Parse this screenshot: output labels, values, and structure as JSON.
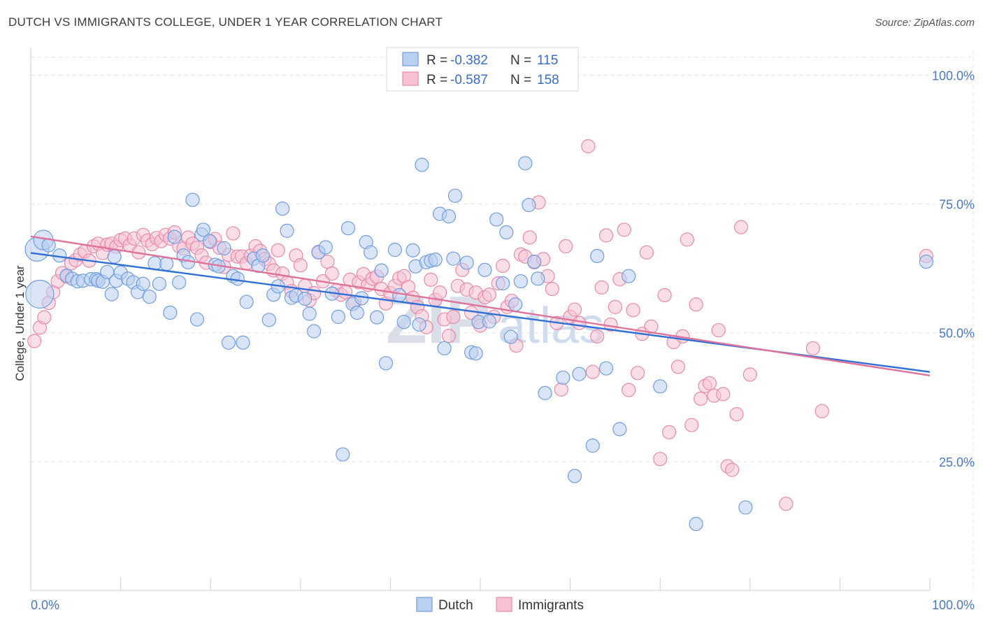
{
  "title": "DUTCH VS IMMIGRANTS COLLEGE, UNDER 1 YEAR CORRELATION CHART",
  "source": "Source: ZipAtlas.com",
  "chart_data": {
    "type": "scatter",
    "title": "DUTCH VS IMMIGRANTS COLLEGE, UNDER 1 YEAR CORRELATION CHART",
    "xlabel": "",
    "ylabel": "College, Under 1 year",
    "xlim": [
      0,
      100
    ],
    "ylim": [
      0,
      104
    ],
    "x_tick_labels": [
      {
        "value": 0,
        "label": "0.0%"
      },
      {
        "value": 100,
        "label": "100.0%"
      }
    ],
    "y_tick_labels": [
      {
        "value": 25,
        "label": "25.0%"
      },
      {
        "value": 50,
        "label": "50.0%"
      },
      {
        "value": 75,
        "label": "75.0%"
      },
      {
        "value": 100,
        "label": "100.0%"
      }
    ],
    "grid": true,
    "legend_placement": "top-center",
    "bottom_legend": [
      "Dutch",
      "Immigrants"
    ],
    "stats": [
      {
        "r_label": "R = ",
        "r": "-0.382",
        "n_label": "N = ",
        "n": "115"
      },
      {
        "r_label": "R = ",
        "r": "-0.587",
        "n_label": "N = ",
        "n": "158"
      }
    ],
    "series": [
      {
        "name": "Dutch",
        "color": "#6f9de0",
        "fill": "#b9d0f0",
        "trend": {
          "x": [
            0,
            100
          ],
          "y": [
            65.5,
            42.4
          ]
        },
        "points": [
          [
            0.7,
            66.2
          ],
          [
            1.4,
            68.0
          ],
          [
            1.0,
            57.5
          ],
          [
            2.0,
            67.0
          ],
          [
            3.2,
            65.0
          ],
          [
            4.0,
            61.1
          ],
          [
            4.6,
            60.5
          ],
          [
            5.2,
            60.0
          ],
          [
            5.8,
            60.1
          ],
          [
            6.7,
            60.4
          ],
          [
            7.3,
            60.4
          ],
          [
            7.5,
            60.1
          ],
          [
            8.0,
            59.9
          ],
          [
            8.5,
            61.8
          ],
          [
            9.0,
            57.5
          ],
          [
            9.3,
            64.8
          ],
          [
            9.5,
            60.1
          ],
          [
            10.0,
            61.7
          ],
          [
            10.8,
            60.5
          ],
          [
            11.4,
            59.8
          ],
          [
            11.9,
            57.9
          ],
          [
            12.5,
            59.5
          ],
          [
            13.2,
            57.0
          ],
          [
            13.8,
            63.5
          ],
          [
            14.3,
            59.5
          ],
          [
            15.1,
            63.4
          ],
          [
            15.5,
            53.9
          ],
          [
            16.0,
            68.6
          ],
          [
            16.5,
            59.8
          ],
          [
            17.0,
            65.0
          ],
          [
            17.5,
            63.7
          ],
          [
            18.0,
            75.8
          ],
          [
            18.5,
            52.6
          ],
          [
            19.0,
            69.1
          ],
          [
            19.2,
            70.0
          ],
          [
            19.9,
            67.8
          ],
          [
            20.5,
            63.2
          ],
          [
            20.9,
            62.9
          ],
          [
            21.5,
            66.4
          ],
          [
            22.0,
            48.1
          ],
          [
            22.5,
            61.0
          ],
          [
            23.0,
            60.5
          ],
          [
            23.6,
            48.1
          ],
          [
            24.0,
            56.0
          ],
          [
            24.8,
            64.4
          ],
          [
            25.3,
            63.0
          ],
          [
            25.8,
            65.0
          ],
          [
            26.5,
            52.5
          ],
          [
            27.0,
            57.4
          ],
          [
            27.5,
            59.0
          ],
          [
            28.0,
            74.1
          ],
          [
            28.5,
            69.8
          ],
          [
            29.0,
            56.8
          ],
          [
            29.5,
            57.2
          ],
          [
            30.5,
            56.6
          ],
          [
            31.0,
            53.7
          ],
          [
            31.5,
            50.3
          ],
          [
            32.0,
            65.6
          ],
          [
            32.8,
            66.6
          ],
          [
            33.5,
            57.6
          ],
          [
            34.2,
            53.1
          ],
          [
            34.7,
            26.4
          ],
          [
            35.3,
            70.3
          ],
          [
            35.8,
            55.6
          ],
          [
            36.3,
            53.9
          ],
          [
            36.8,
            56.7
          ],
          [
            37.3,
            67.6
          ],
          [
            37.8,
            65.6
          ],
          [
            38.5,
            53.0
          ],
          [
            39.0,
            62.1
          ],
          [
            39.5,
            44.1
          ],
          [
            40.5,
            66.1
          ],
          [
            41.0,
            57.3
          ],
          [
            41.5,
            52.1
          ],
          [
            42.5,
            66.0
          ],
          [
            42.8,
            62.9
          ],
          [
            43.2,
            51.6
          ],
          [
            43.5,
            82.6
          ],
          [
            44.0,
            63.7
          ],
          [
            44.5,
            64.0
          ],
          [
            45.0,
            64.2
          ],
          [
            45.5,
            73.1
          ],
          [
            46.0,
            47.0
          ],
          [
            46.5,
            72.6
          ],
          [
            47.0,
            64.4
          ],
          [
            47.2,
            76.6
          ],
          [
            48.5,
            63.6
          ],
          [
            49.0,
            46.2
          ],
          [
            49.5,
            46.0
          ],
          [
            49.8,
            52.1
          ],
          [
            50.5,
            62.2
          ],
          [
            51.0,
            52.2
          ],
          [
            51.8,
            72.0
          ],
          [
            52.5,
            59.6
          ],
          [
            52.9,
            69.5
          ],
          [
            53.4,
            49.2
          ],
          [
            53.9,
            55.5
          ],
          [
            54.5,
            60.0
          ],
          [
            55.0,
            82.9
          ],
          [
            55.4,
            74.8
          ],
          [
            56.0,
            63.8
          ],
          [
            56.4,
            60.5
          ],
          [
            57.2,
            38.3
          ],
          [
            59.2,
            41.3
          ],
          [
            60.5,
            22.2
          ],
          [
            61.0,
            42.0
          ],
          [
            62.5,
            28.1
          ],
          [
            63.0,
            64.9
          ],
          [
            64.0,
            43.1
          ],
          [
            65.5,
            31.3
          ],
          [
            66.5,
            61.0
          ],
          [
            70.0,
            39.6
          ],
          [
            74.0,
            12.9
          ],
          [
            79.5,
            16.1
          ],
          [
            99.6,
            63.8
          ]
        ]
      },
      {
        "name": "Immigrants",
        "color": "#e88aa8",
        "fill": "#f6c3d3",
        "trend": {
          "x": [
            0,
            100
          ],
          "y": [
            68.7,
            41.7
          ]
        },
        "points": [
          [
            0.4,
            48.4
          ],
          [
            1.0,
            51.0
          ],
          [
            1.5,
            53.0
          ],
          [
            2.0,
            55.8
          ],
          [
            2.5,
            57.9
          ],
          [
            3.0,
            60.0
          ],
          [
            3.5,
            61.6
          ],
          [
            4.0,
            60.9
          ],
          [
            4.5,
            63.5
          ],
          [
            5.0,
            64.1
          ],
          [
            5.5,
            65.2
          ],
          [
            6.0,
            65.8
          ],
          [
            6.5,
            64.0
          ],
          [
            7.0,
            66.8
          ],
          [
            7.5,
            67.3
          ],
          [
            8.0,
            65.5
          ],
          [
            8.5,
            67.1
          ],
          [
            9.0,
            67.3
          ],
          [
            9.5,
            66.7
          ],
          [
            10.0,
            68.0
          ],
          [
            10.5,
            68.3
          ],
          [
            11.0,
            67.0
          ],
          [
            11.5,
            68.3
          ],
          [
            12.0,
            65.6
          ],
          [
            12.5,
            69.0
          ],
          [
            13.0,
            67.9
          ],
          [
            13.5,
            67.2
          ],
          [
            14.0,
            68.4
          ],
          [
            14.5,
            67.8
          ],
          [
            15.0,
            69.0
          ],
          [
            15.5,
            68.3
          ],
          [
            16.0,
            69.5
          ],
          [
            16.5,
            66.8
          ],
          [
            17.0,
            66.4
          ],
          [
            17.5,
            68.5
          ],
          [
            18.0,
            67.3
          ],
          [
            18.5,
            66.5
          ],
          [
            19.0,
            65.0
          ],
          [
            19.5,
            63.6
          ],
          [
            20.0,
            67.6
          ],
          [
            20.5,
            68.2
          ],
          [
            21.0,
            66.5
          ],
          [
            21.5,
            62.8
          ],
          [
            22.0,
            65.1
          ],
          [
            22.5,
            69.3
          ],
          [
            23.0,
            64.8
          ],
          [
            23.5,
            64.8
          ],
          [
            24.0,
            63.5
          ],
          [
            24.5,
            65.0
          ],
          [
            25.0,
            66.8
          ],
          [
            25.5,
            65.9
          ],
          [
            26.0,
            64.3
          ],
          [
            26.5,
            63.4
          ],
          [
            27.0,
            62.1
          ],
          [
            27.5,
            66.0
          ],
          [
            28.0,
            61.5
          ],
          [
            28.5,
            59.7
          ],
          [
            29.0,
            58.1
          ],
          [
            29.5,
            65.0
          ],
          [
            30.0,
            63.1
          ],
          [
            30.5,
            59.1
          ],
          [
            31.0,
            56.3
          ],
          [
            31.5,
            57.7
          ],
          [
            32.0,
            65.7
          ],
          [
            32.5,
            60.0
          ],
          [
            33.0,
            63.8
          ],
          [
            33.5,
            61.5
          ],
          [
            34.0,
            58.2
          ],
          [
            34.5,
            57.4
          ],
          [
            35.0,
            57.9
          ],
          [
            35.5,
            60.3
          ],
          [
            36.0,
            55.9
          ],
          [
            36.5,
            59.8
          ],
          [
            37.0,
            61.4
          ],
          [
            37.5,
            59.3
          ],
          [
            38.0,
            60.5
          ],
          [
            38.5,
            60.9
          ],
          [
            39.0,
            58.5
          ],
          [
            39.5,
            55.7
          ],
          [
            40.0,
            57.7
          ],
          [
            40.5,
            59.1
          ],
          [
            41.0,
            60.6
          ],
          [
            41.5,
            61.0
          ],
          [
            42.0,
            58.9
          ],
          [
            42.5,
            56.8
          ],
          [
            43.0,
            55.0
          ],
          [
            43.5,
            53.2
          ],
          [
            44.0,
            51.1
          ],
          [
            44.5,
            60.3
          ],
          [
            45.0,
            56.4
          ],
          [
            45.5,
            57.8
          ],
          [
            46.0,
            52.6
          ],
          [
            46.5,
            49.4
          ],
          [
            47.0,
            53.1
          ],
          [
            47.5,
            59.1
          ],
          [
            48.0,
            62.2
          ],
          [
            48.5,
            58.4
          ],
          [
            49.0,
            53.9
          ],
          [
            49.5,
            57.8
          ],
          [
            50.0,
            51.4
          ],
          [
            50.5,
            56.9
          ],
          [
            51.0,
            57.4
          ],
          [
            51.5,
            53.1
          ],
          [
            52.0,
            59.6
          ],
          [
            52.5,
            63.0
          ],
          [
            53.0,
            55.0
          ],
          [
            53.5,
            56.2
          ],
          [
            54.0,
            47.5
          ],
          [
            54.5,
            65.2
          ],
          [
            55.0,
            64.8
          ],
          [
            55.5,
            68.5
          ],
          [
            56.0,
            63.7
          ],
          [
            56.5,
            75.3
          ],
          [
            57.0,
            64.3
          ],
          [
            57.5,
            61.0
          ],
          [
            58.0,
            58.5
          ],
          [
            58.5,
            51.9
          ],
          [
            59.0,
            39.0
          ],
          [
            59.5,
            66.8
          ],
          [
            60.0,
            53.1
          ],
          [
            60.5,
            54.5
          ],
          [
            61.0,
            51.9
          ],
          [
            62.0,
            86.2
          ],
          [
            62.5,
            42.4
          ],
          [
            63.0,
            49.3
          ],
          [
            63.5,
            58.8
          ],
          [
            64.0,
            68.9
          ],
          [
            64.5,
            51.6
          ],
          [
            65.0,
            55.0
          ],
          [
            65.5,
            60.4
          ],
          [
            66.0,
            70.0
          ],
          [
            66.5,
            38.9
          ],
          [
            67.0,
            54.4
          ],
          [
            67.5,
            42.2
          ],
          [
            68.0,
            49.8
          ],
          [
            68.5,
            65.6
          ],
          [
            69.0,
            51.2
          ],
          [
            70.0,
            25.5
          ],
          [
            70.5,
            57.3
          ],
          [
            71.0,
            30.7
          ],
          [
            71.5,
            48.2
          ],
          [
            72.0,
            43.4
          ],
          [
            72.5,
            49.3
          ],
          [
            73.0,
            68.1
          ],
          [
            73.5,
            32.1
          ],
          [
            74.0,
            55.5
          ],
          [
            74.5,
            37.2
          ],
          [
            75.0,
            39.7
          ],
          [
            75.5,
            40.2
          ],
          [
            76.0,
            37.8
          ],
          [
            76.5,
            50.5
          ],
          [
            77.0,
            38.1
          ],
          [
            77.5,
            24.1
          ],
          [
            78.0,
            23.4
          ],
          [
            78.5,
            34.2
          ],
          [
            79.0,
            70.5
          ],
          [
            80.0,
            41.9
          ],
          [
            84.0,
            16.8
          ],
          [
            87.0,
            47.0
          ],
          [
            88.0,
            34.8
          ],
          [
            99.6,
            64.9
          ]
        ]
      }
    ]
  }
}
